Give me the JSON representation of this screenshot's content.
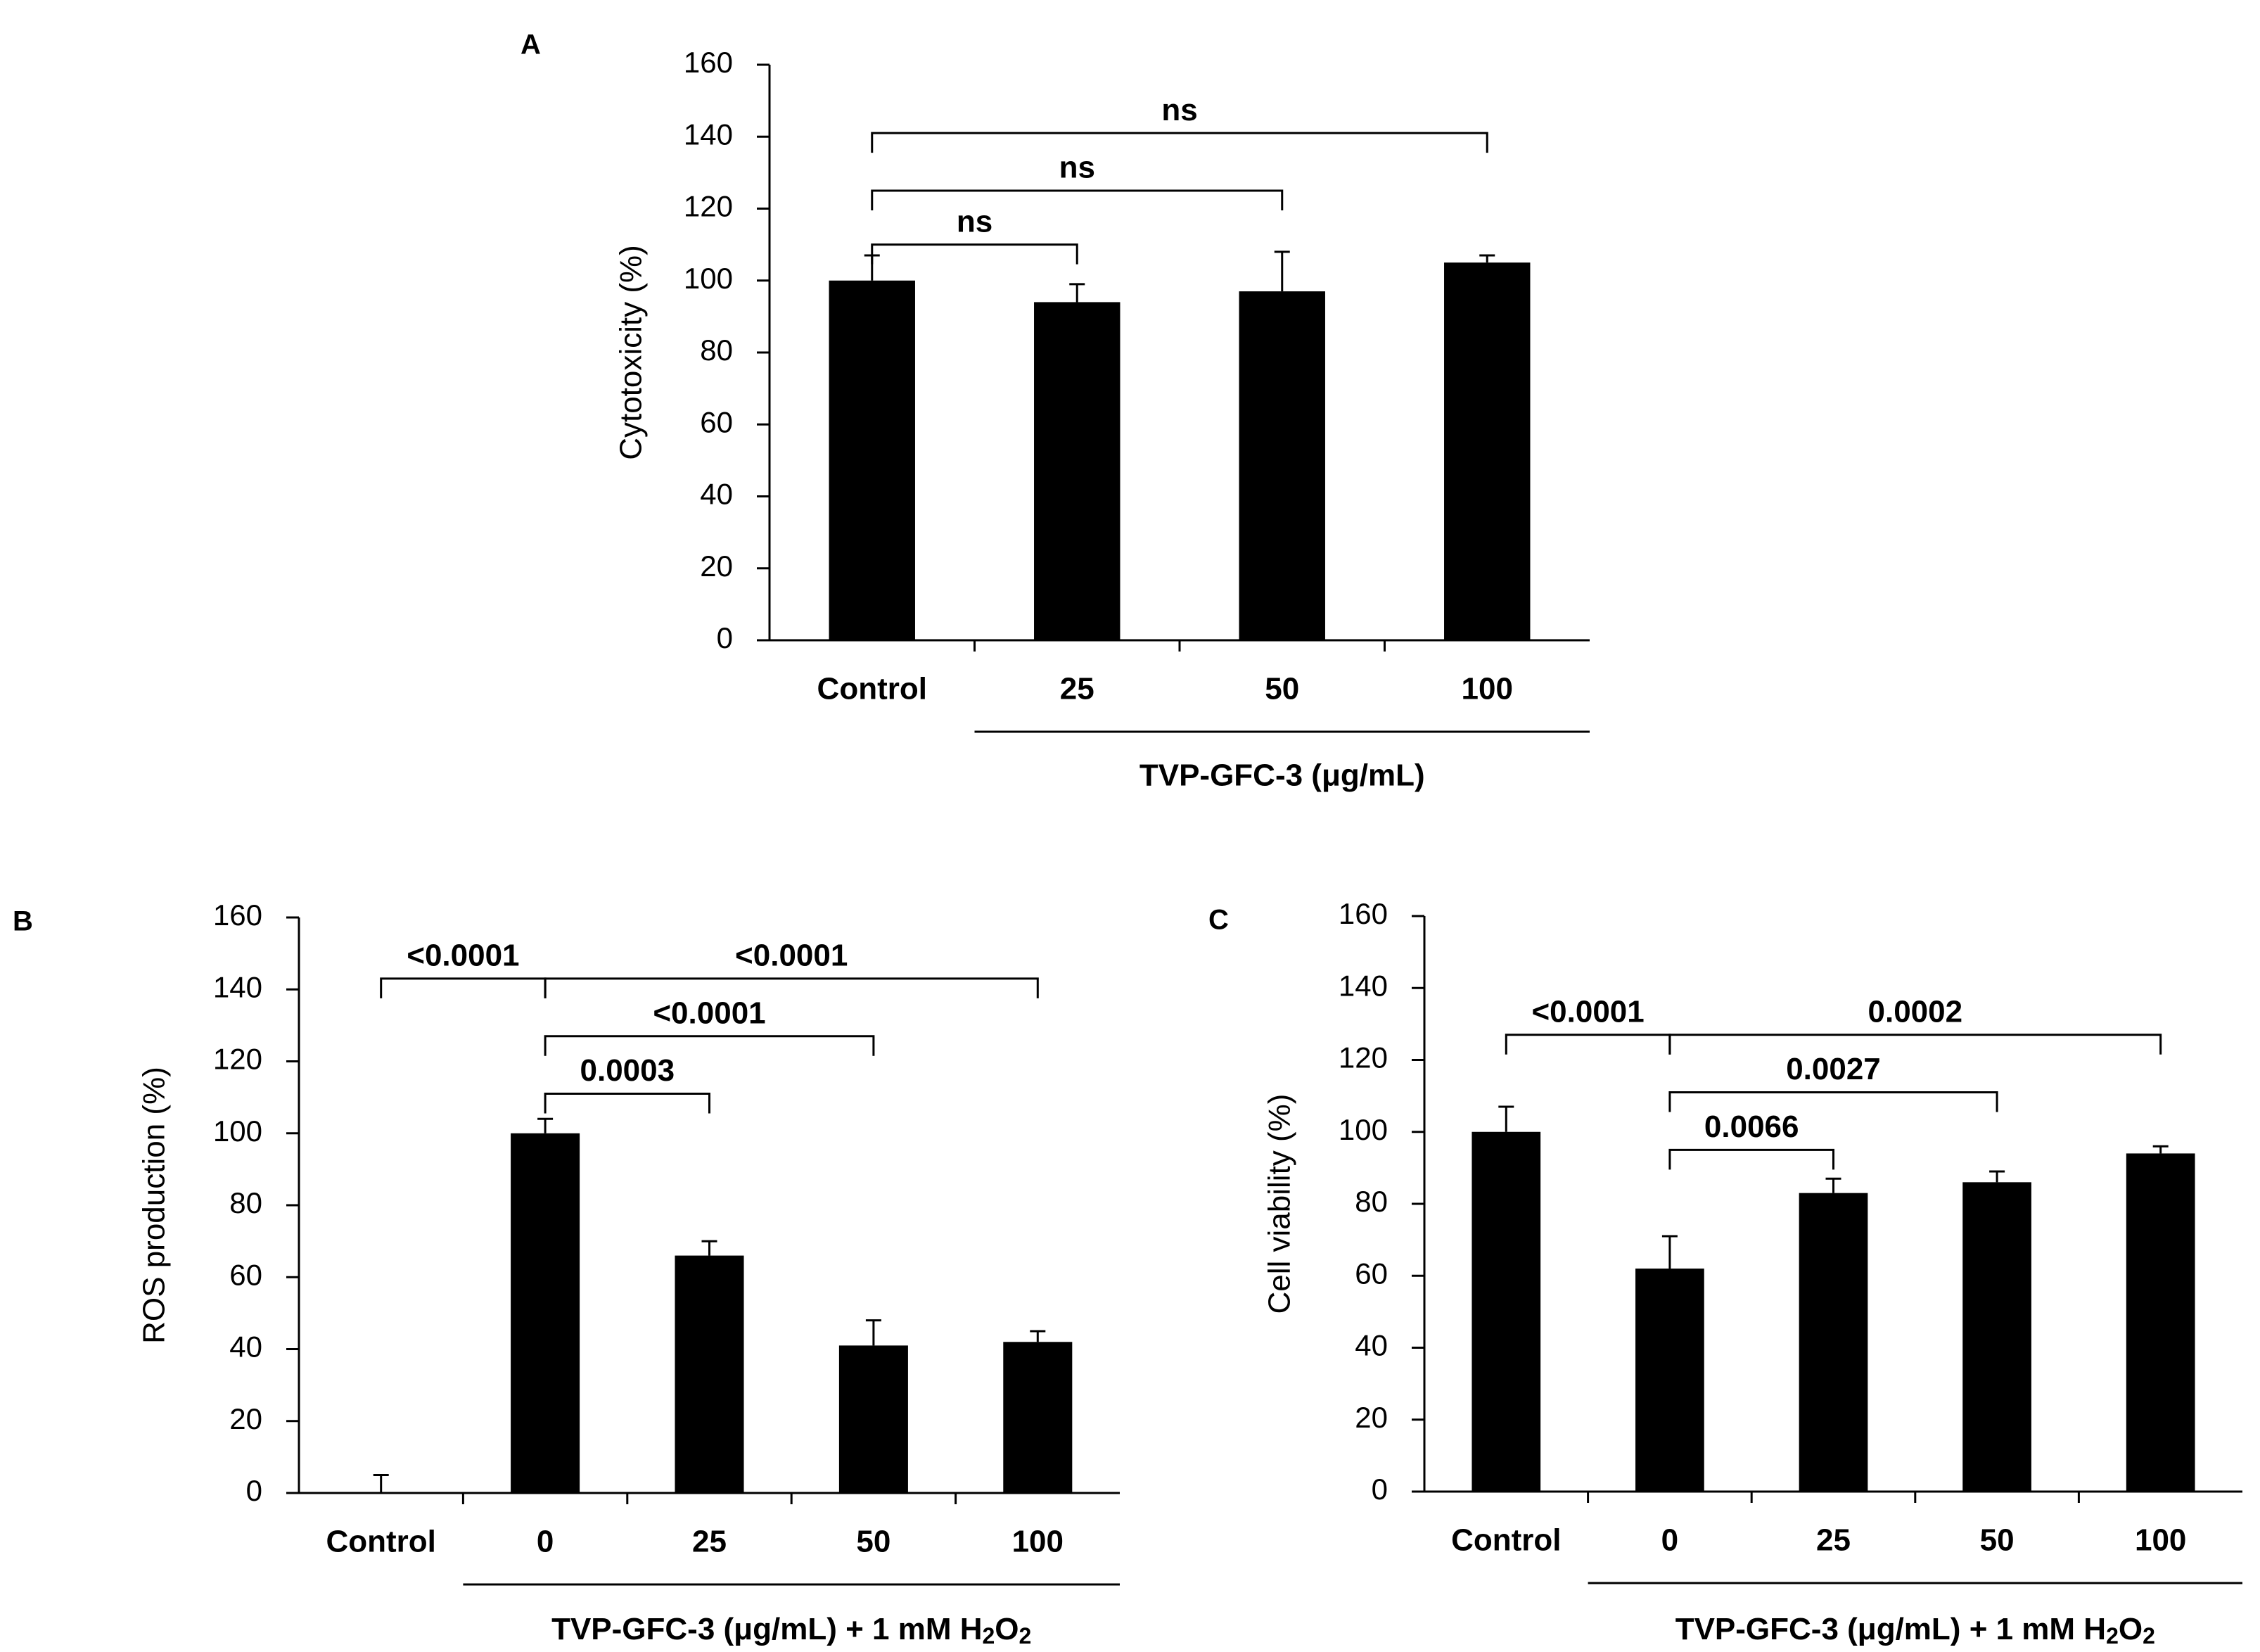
{
  "chart_data": [
    {
      "panel": "A",
      "type": "bar",
      "categories": [
        "Control",
        "25",
        "50",
        "100"
      ],
      "values": [
        100,
        94,
        97,
        105
      ],
      "errors": [
        7,
        5,
        11,
        2
      ],
      "ylabel": "Cytotoxicity (%)",
      "xlabel": "TVP-GFC-3 (μg/mL)",
      "ylim": [
        0,
        160
      ],
      "yticks": [
        0,
        20,
        40,
        60,
        80,
        100,
        120,
        140,
        160
      ],
      "comparisons": [
        {
          "from": 0,
          "to": 1,
          "label": "ns",
          "y": 110
        },
        {
          "from": 0,
          "to": 2,
          "label": "ns",
          "y": 125
        },
        {
          "from": 0,
          "to": 3,
          "label": "ns",
          "y": 141
        }
      ]
    },
    {
      "panel": "B",
      "type": "bar",
      "categories": [
        "Control",
        "0",
        "25",
        "50",
        "100"
      ],
      "values": [
        0,
        100,
        66,
        41,
        42
      ],
      "errors": [
        5,
        4,
        4,
        7,
        3
      ],
      "ylabel": "ROS production (%)",
      "xlabel_text": "TVP-GFC-3 (μg/mL) + 1 mM H",
      "xlabel_sub": "2",
      "xlabel_end": "O",
      "ylim": [
        0,
        160
      ],
      "yticks": [
        0,
        20,
        40,
        60,
        80,
        100,
        120,
        140,
        160
      ],
      "comparisons": [
        {
          "from": 0,
          "to": 1,
          "label": "<0.0001",
          "y": 143
        },
        {
          "from": 1,
          "to": 2,
          "label": "0.0003",
          "y": 111
        },
        {
          "from": 1,
          "to": 3,
          "label": "<0.0001",
          "y": 127
        },
        {
          "from": 1,
          "to": 4,
          "label": "<0.0001",
          "y": 143
        }
      ]
    },
    {
      "panel": "C",
      "type": "bar",
      "categories": [
        "Control",
        "0",
        "25",
        "50",
        "100"
      ],
      "values": [
        100,
        62,
        83,
        86,
        94
      ],
      "errors": [
        7,
        9,
        4,
        3,
        2
      ],
      "ylabel": "Cell viability (%)",
      "xlabel_text": "TVP-GFC-3 (μg/mL) + 1 mM H",
      "xlabel_sub": "2",
      "xlabel_end": "O",
      "ylim": [
        0,
        160
      ],
      "yticks": [
        0,
        20,
        40,
        60,
        80,
        100,
        120,
        140,
        160
      ],
      "comparisons": [
        {
          "from": 0,
          "to": 1,
          "label": "<0.0001",
          "y": 127
        },
        {
          "from": 1,
          "to": 2,
          "label": "0.0066",
          "y": 95
        },
        {
          "from": 1,
          "to": 3,
          "label": "0.0027",
          "y": 111
        },
        {
          "from": 1,
          "to": 4,
          "label": "0.0002",
          "y": 127
        }
      ]
    }
  ]
}
